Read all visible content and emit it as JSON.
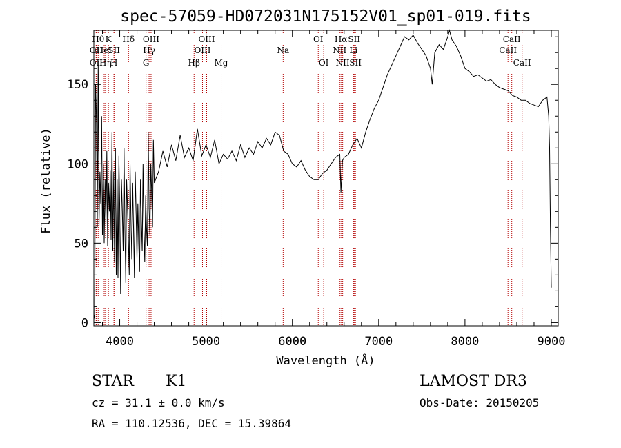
{
  "chart_data": {
    "type": "line",
    "title": "spec-57059-HD072031N175152V01_sp01-019.fits",
    "xlabel": "Wavelength (Å)",
    "ylabel": "Flux (relative)",
    "xlim": [
      3700,
      9080
    ],
    "ylim": [
      -2,
      184
    ],
    "xticks": [
      4000,
      5000,
      6000,
      7000,
      8000,
      9000
    ],
    "yticks": [
      0,
      50,
      100,
      150
    ],
    "grid": false,
    "line_color": "#000000",
    "marker_color": "#b30000",
    "series": [
      {
        "name": "flux",
        "x": [
          3700,
          3710,
          3720,
          3730,
          3740,
          3750,
          3760,
          3770,
          3780,
          3790,
          3800,
          3810,
          3820,
          3830,
          3840,
          3850,
          3860,
          3870,
          3880,
          3890,
          3900,
          3910,
          3920,
          3930,
          3940,
          3950,
          3960,
          3970,
          3980,
          3990,
          4000,
          4010,
          4020,
          4030,
          4040,
          4050,
          4060,
          4070,
          4080,
          4090,
          4100,
          4110,
          4120,
          4130,
          4140,
          4150,
          4160,
          4170,
          4180,
          4190,
          4200,
          4210,
          4220,
          4230,
          4240,
          4250,
          4260,
          4270,
          4280,
          4290,
          4300,
          4310,
          4320,
          4330,
          4340,
          4350,
          4360,
          4370,
          4380,
          4390,
          4400,
          4450,
          4500,
          4550,
          4600,
          4650,
          4700,
          4750,
          4800,
          4850,
          4900,
          4950,
          5000,
          5050,
          5100,
          5150,
          5200,
          5250,
          5300,
          5350,
          5400,
          5450,
          5500,
          5550,
          5600,
          5650,
          5700,
          5750,
          5800,
          5850,
          5900,
          5950,
          6000,
          6050,
          6100,
          6150,
          6200,
          6250,
          6300,
          6350,
          6400,
          6450,
          6500,
          6550,
          6563,
          6580,
          6600,
          6650,
          6700,
          6750,
          6800,
          6850,
          6900,
          6950,
          7000,
          7050,
          7100,
          7150,
          7200,
          7250,
          7300,
          7350,
          7400,
          7450,
          7500,
          7550,
          7600,
          7620,
          7650,
          7700,
          7750,
          7800,
          7820,
          7850,
          7900,
          7950,
          8000,
          8050,
          8100,
          8150,
          8200,
          8250,
          8300,
          8350,
          8400,
          8450,
          8500,
          8550,
          8600,
          8650,
          8700,
          8750,
          8800,
          8850,
          8900,
          8950,
          8970,
          8980,
          8990,
          9000
        ],
        "values": [
          2,
          5,
          150,
          128,
          60,
          165,
          60,
          95,
          75,
          130,
          55,
          100,
          50,
          90,
          60,
          108,
          48,
          88,
          70,
          96,
          52,
          120,
          45,
          95,
          38,
          110,
          30,
          90,
          28,
          105,
          75,
          18,
          90,
          70,
          45,
          110,
          60,
          25,
          90,
          72,
          55,
          30,
          100,
          65,
          40,
          88,
          60,
          28,
          95,
          68,
          40,
          75,
          50,
          32,
          90,
          65,
          45,
          100,
          58,
          38,
          80,
          60,
          48,
          120,
          72,
          55,
          100,
          82,
          60,
          115,
          88,
          95,
          108,
          98,
          112,
          102,
          118,
          104,
          110,
          102,
          122,
          105,
          112,
          104,
          115,
          100,
          106,
          103,
          108,
          102,
          112,
          104,
          110,
          106,
          114,
          110,
          116,
          112,
          120,
          118,
          108,
          106,
          100,
          98,
          102,
          96,
          92,
          90,
          90,
          94,
          96,
          100,
          104,
          106,
          82,
          102,
          104,
          106,
          112,
          116,
          110,
          120,
          128,
          135,
          140,
          148,
          156,
          162,
          168,
          174,
          180,
          178,
          181,
          176,
          172,
          168,
          160,
          150,
          170,
          175,
          172,
          180,
          184,
          178,
          174,
          168,
          160,
          158,
          155,
          156,
          154,
          152,
          153,
          150,
          148,
          147,
          146,
          143,
          142,
          140,
          140,
          138,
          137,
          136,
          140,
          142,
          130,
          110,
          60,
          22
        ]
      }
    ],
    "lines": [
      {
        "wavelength": 3750,
        "label": "Hθ",
        "row": 1
      },
      {
        "wavelength": 3727,
        "label": "OII",
        "row": 2
      },
      {
        "wavelength": 3727,
        "label": "OII",
        "row": 3
      },
      {
        "wavelength": 3835,
        "label": "Hη",
        "row": 3
      },
      {
        "wavelength": 3820,
        "label": "HeI",
        "row": 2
      },
      {
        "wavelength": 3869,
        "label": "K",
        "row": 1
      },
      {
        "wavelength": 3934,
        "label": "H",
        "row": 3
      },
      {
        "wavelength": 3933,
        "label": "SII",
        "row": 2
      },
      {
        "wavelength": 4102,
        "label": "Hδ",
        "row": 1
      },
      {
        "wavelength": 4340,
        "label": "Hγ",
        "row": 2
      },
      {
        "wavelength": 4305,
        "label": "G",
        "row": 3
      },
      {
        "wavelength": 4363,
        "label": "OIII",
        "row": 1
      },
      {
        "wavelength": 4861,
        "label": "Hβ",
        "row": 3
      },
      {
        "wavelength": 4959,
        "label": "OIII",
        "row": 2
      },
      {
        "wavelength": 5007,
        "label": "OIII",
        "row": 1
      },
      {
        "wavelength": 5175,
        "label": "Mg",
        "row": 3
      },
      {
        "wavelength": 5893,
        "label": "Na",
        "row": 2
      },
      {
        "wavelength": 6300,
        "label": "OI",
        "row": 1
      },
      {
        "wavelength": 6363,
        "label": "OI",
        "row": 3
      },
      {
        "wavelength": 6548,
        "label": "NII",
        "row": 2
      },
      {
        "wavelength": 6563,
        "label": "Hα",
        "row": 1
      },
      {
        "wavelength": 6583,
        "label": "NII",
        "row": 3
      },
      {
        "wavelength": 6708,
        "label": "Li",
        "row": 2
      },
      {
        "wavelength": 6716,
        "label": "SII",
        "row": 1
      },
      {
        "wavelength": 6731,
        "label": "SII",
        "row": 3
      },
      {
        "wavelength": 8498,
        "label": "CaII",
        "row": 2
      },
      {
        "wavelength": 8542,
        "label": "CaII",
        "row": 1
      },
      {
        "wavelength": 8662,
        "label": "CaII",
        "row": 3
      }
    ]
  },
  "info": {
    "class_label": "STAR",
    "subclass": "K1",
    "survey": "LAMOST DR3",
    "cz": "cz = 31.1 ± 0.0 km/s",
    "obs_date": "Obs-Date: 20150205",
    "coords": "RA = 110.12536, DEC =  15.39864"
  }
}
